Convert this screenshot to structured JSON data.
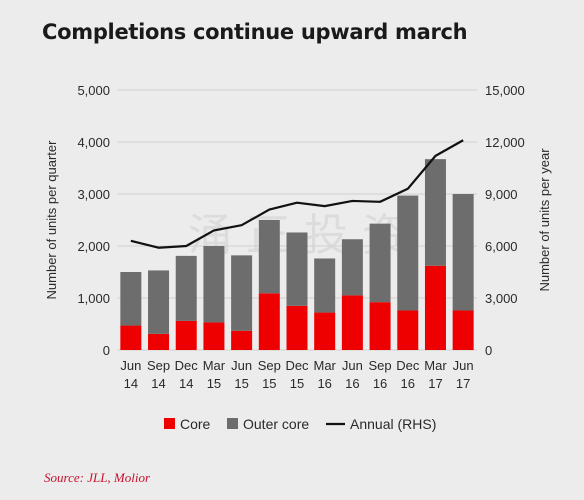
{
  "title": "Completions continue upward march",
  "source": "Source: JLL, Molior",
  "watermark": "涌 正 投 资",
  "colors": {
    "core": "#ee0000",
    "outer_core": "#6d6d6d",
    "annual": "#111111",
    "grid": "#cfcfcf"
  },
  "chart_data": {
    "type": "bar",
    "stacked": true,
    "categories": [
      [
        "Jun",
        "14"
      ],
      [
        "Sep",
        "14"
      ],
      [
        "Dec",
        "14"
      ],
      [
        "Mar",
        "15"
      ],
      [
        "Jun",
        "15"
      ],
      [
        "Sep",
        "15"
      ],
      [
        "Dec",
        "15"
      ],
      [
        "Mar",
        "16"
      ],
      [
        "Jun",
        "16"
      ],
      [
        "Sep",
        "16"
      ],
      [
        "Dec",
        "16"
      ],
      [
        "Mar",
        "17"
      ],
      [
        "Jun",
        "17"
      ]
    ],
    "series": [
      {
        "name": "Core",
        "type": "bar",
        "axis": "left",
        "values": [
          470,
          310,
          560,
          530,
          370,
          1090,
          850,
          720,
          1050,
          920,
          760,
          1620,
          760
        ]
      },
      {
        "name": "Outer core",
        "type": "bar",
        "axis": "left",
        "values": [
          1030,
          1220,
          1250,
          1470,
          1450,
          1410,
          1410,
          1040,
          1080,
          1510,
          2210,
          2050,
          2240
        ]
      },
      {
        "name": "Annual (RHS)",
        "type": "line",
        "axis": "right",
        "values": [
          6300,
          5900,
          6000,
          6900,
          7200,
          8100,
          8500,
          8300,
          8600,
          8550,
          9300,
          11200,
          12100
        ]
      }
    ],
    "ylabel": "Number of units per quarter",
    "y2label": "Number of units per year",
    "ylim": [
      0,
      5000
    ],
    "y2lim": [
      0,
      15000
    ],
    "yticks": [
      "0",
      "1,000",
      "2,000",
      "3,000",
      "4,000",
      "5,000"
    ],
    "y2ticks": [
      "0",
      "3,000",
      "6,000",
      "9,000",
      "12,000",
      "15,000"
    ],
    "grid": "horizontal",
    "legend": "bottom"
  }
}
